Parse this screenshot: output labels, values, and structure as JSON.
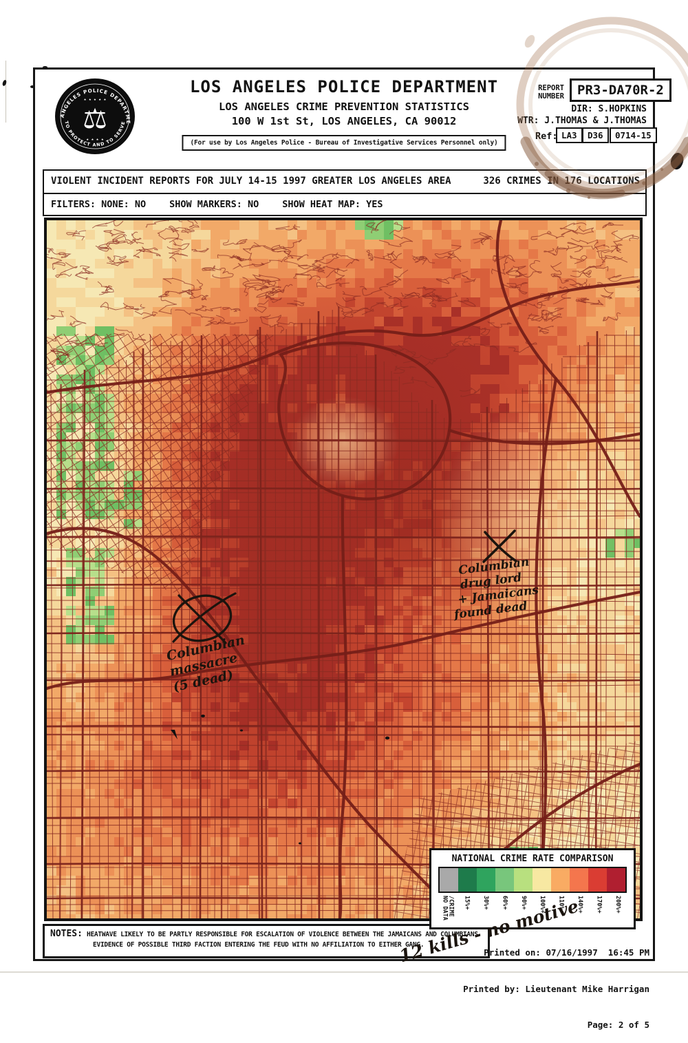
{
  "header": {
    "agency": "LOS ANGELES POLICE DEPARTMENT",
    "subtitle": "LOS ANGELES CRIME PREVENTION STATISTICS",
    "address": "100 W 1st St, LOS ANGELES, CA 90012",
    "restriction": "(For use by Los Angeles Police - Bureau of Investigative Services Personnel only)",
    "seal": {
      "ring_top": "LOS ANGELES POLICE DEPARTMENT",
      "ring_bottom": "TO PROTECT AND TO SERVE",
      "stars_top": "★ ★ ★ ★ ★",
      "stars_bottom": "★ ★ ★ ★",
      "icon": "⚖"
    },
    "report_number_label": "REPORT NUMBER",
    "report_number": "PR3-DA70R-2",
    "director": "DIR: S.HOPKINS",
    "writer": "WTR: J.THOMAS & J.THOMAS",
    "ref_label": "Ref:",
    "refs": [
      "LA3",
      "D36",
      "0714-15"
    ]
  },
  "report_bar": {
    "title": "VIOLENT INCIDENT REPORTS FOR JULY 14-15 1997 GREATER LOS ANGELES AREA",
    "count": "326 CRIMES IN 176 LOCATIONS",
    "filters": "FILTERS: NONE: NO",
    "markers": "SHOW MARKERS: NO",
    "heatmap": "SHOW HEAT MAP: YES"
  },
  "map": {
    "bg": "#f0a465",
    "warm": [
      "#f6e8b4",
      "#f5d89c",
      "#f4c183",
      "#f2a968",
      "#ec9157",
      "#e57848",
      "#d85f3b",
      "#c4452f",
      "#a93028"
    ],
    "greens": [
      "#8fce74",
      "#b7df8b",
      "#6fbf63"
    ],
    "street": "#8a2b22",
    "major": "#7c241c",
    "freeway": "#751f18",
    "cell": 14,
    "seed": 1997
  },
  "legend": {
    "title": "NATIONAL CRIME RATE COMPARISON",
    "swatches": [
      {
        "color": "#a9a9a9",
        "label": "NO DATA",
        "label2": "/CRIME"
      },
      {
        "color": "#1e7b4b",
        "label": "15%+"
      },
      {
        "color": "#2fa45e",
        "label": "30%+"
      },
      {
        "color": "#78c67c",
        "label": "60%+"
      },
      {
        "color": "#b8e07f",
        "label": "90%+"
      },
      {
        "color": "#f7e8a2",
        "label": "100%+"
      },
      {
        "color": "#f9ab63",
        "label": "110%+"
      },
      {
        "color": "#f4764d",
        "label": "140%+"
      },
      {
        "color": "#da3d33",
        "label": "170%+"
      },
      {
        "color": "#b01f30",
        "label": "200%+"
      }
    ]
  },
  "notes": {
    "label": "NOTES:",
    "line1": "HEATWAVE LIKELY TO BE PARTLY RESPONSIBLE FOR ESCALATION OF VIOLENCE BETWEEN THE JAMAICANS AND COLUMBIANS",
    "line2": "EVIDENCE OF POSSIBLE THIRD FACTION ENTERING THE FEUD WITH NO AFFILIATION TO EITHER GANG."
  },
  "footer": {
    "printed_on": "Printed on: 07/16/1997  16:45 PM",
    "printed_by": "Printed by: Lieutenant Mike Harrigan",
    "page": "Page: 2 of 5"
  },
  "annotations": {
    "right": {
      "lines": [
        "Columbian",
        "drug lord",
        "+ Jamaicans",
        "found dead"
      ]
    },
    "left": {
      "lines": [
        "Columbian",
        "massacre",
        "(5 dead)"
      ]
    },
    "bottom": "12 kills - no motive"
  }
}
